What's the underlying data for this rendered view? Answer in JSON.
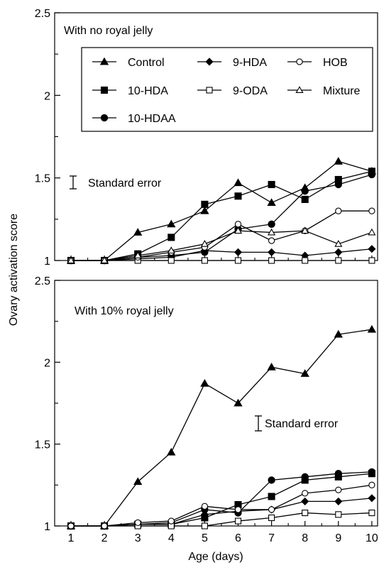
{
  "chart_data": [
    {
      "type": "line",
      "annotation": "With no royal jelly",
      "error_label": "Standard error",
      "ylabel": "Ovary activation score",
      "xlabel": "",
      "ylim": [
        1,
        2.5
      ],
      "yticks": [
        "1",
        "1.5",
        "2",
        "2.5"
      ],
      "x": [
        1,
        2,
        3,
        4,
        5,
        6,
        7,
        8,
        9,
        10
      ],
      "legend_position": "top",
      "series": [
        {
          "name": "Control",
          "marker": "triangle-filled",
          "values": [
            1.0,
            1.0,
            1.17,
            1.22,
            1.3,
            1.47,
            1.35,
            1.44,
            1.6,
            1.54
          ]
        },
        {
          "name": "10-HDA",
          "marker": "square-filled",
          "values": [
            1.0,
            1.0,
            1.04,
            1.14,
            1.34,
            1.39,
            1.46,
            1.37,
            1.49,
            1.54
          ]
        },
        {
          "name": "10-HDAA",
          "marker": "circle-filled",
          "values": [
            1.0,
            1.0,
            1.02,
            1.03,
            1.05,
            1.19,
            1.22,
            1.42,
            1.46,
            1.52
          ]
        },
        {
          "name": "9-HDA",
          "marker": "diamond-filled",
          "values": [
            1.0,
            1.0,
            1.01,
            1.02,
            1.06,
            1.05,
            1.05,
            1.03,
            1.05,
            1.07
          ]
        },
        {
          "name": "9-ODA",
          "marker": "square-open",
          "values": [
            1.0,
            1.0,
            1.0,
            1.0,
            1.0,
            1.0,
            1.0,
            1.0,
            1.0,
            1.0
          ]
        },
        {
          "name": "HOB",
          "marker": "circle-open",
          "values": [
            1.0,
            1.0,
            1.02,
            1.05,
            1.08,
            1.22,
            1.12,
            1.18,
            1.3,
            1.3
          ]
        },
        {
          "name": "Mixture",
          "marker": "triangle-open",
          "values": [
            1.0,
            1.0,
            1.03,
            1.06,
            1.1,
            1.18,
            1.17,
            1.18,
            1.1,
            1.17
          ]
        }
      ]
    },
    {
      "type": "line",
      "annotation": "With 10% royal jelly",
      "error_label": "Standard error",
      "ylabel": "Ovary activation score",
      "xlabel": "Age (days)",
      "ylim": [
        1,
        2.5
      ],
      "yticks": [
        "1",
        "1.5",
        "2",
        "2.5"
      ],
      "x": [
        1,
        2,
        3,
        4,
        5,
        6,
        7,
        8,
        9,
        10
      ],
      "xticks": [
        "1",
        "2",
        "3",
        "4",
        "5",
        "6",
        "7",
        "8",
        "9",
        "10"
      ],
      "series": [
        {
          "name": "Control",
          "marker": "triangle-filled",
          "values": [
            1.0,
            1.0,
            1.27,
            1.45,
            1.87,
            1.75,
            1.97,
            1.93,
            2.17,
            2.2
          ]
        },
        {
          "name": "10-HDA",
          "marker": "square-filled",
          "values": [
            1.0,
            1.0,
            1.01,
            1.01,
            1.05,
            1.13,
            1.18,
            1.28,
            1.3,
            1.32
          ]
        },
        {
          "name": "10-HDAA",
          "marker": "circle-filled",
          "values": [
            1.0,
            1.0,
            1.01,
            1.02,
            1.1,
            1.08,
            1.28,
            1.3,
            1.32,
            1.33
          ]
        },
        {
          "name": "9-HDA",
          "marker": "diamond-filled",
          "values": [
            1.0,
            1.0,
            1.01,
            1.01,
            1.07,
            1.09,
            1.1,
            1.15,
            1.15,
            1.17
          ]
        },
        {
          "name": "9-ODA",
          "marker": "square-open",
          "values": [
            1.0,
            1.0,
            1.0,
            1.0,
            1.0,
            1.03,
            1.05,
            1.08,
            1.07,
            1.08
          ]
        },
        {
          "name": "HOB",
          "marker": "circle-open",
          "values": [
            1.0,
            1.0,
            1.02,
            1.03,
            1.12,
            1.1,
            1.1,
            1.2,
            1.22,
            1.25
          ]
        }
      ]
    }
  ]
}
